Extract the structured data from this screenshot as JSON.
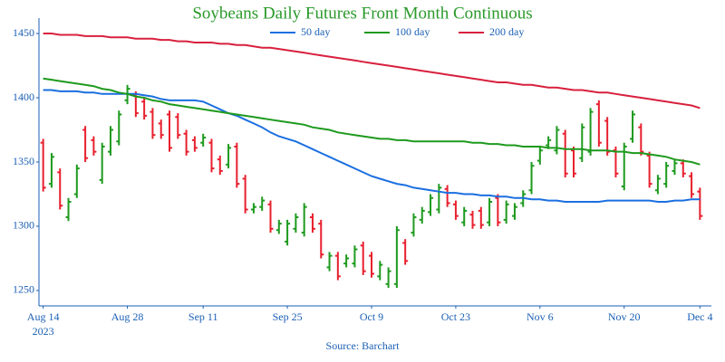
{
  "chart_data": {
    "type": "ohlc",
    "title": "Soybeans Daily Futures Front Month Continuous",
    "source": "Source: Barchart",
    "x_year": "2023",
    "categories": [
      "Aug 14",
      null,
      null,
      null,
      null,
      null,
      null,
      null,
      null,
      null,
      "Aug 28",
      null,
      null,
      null,
      null,
      null,
      null,
      null,
      null,
      "Sep 11",
      null,
      null,
      null,
      null,
      null,
      null,
      null,
      null,
      null,
      "Sep 25",
      null,
      null,
      null,
      null,
      null,
      null,
      null,
      null,
      null,
      "Oct 9",
      null,
      null,
      null,
      null,
      null,
      null,
      null,
      null,
      null,
      "Oct 23",
      null,
      null,
      null,
      null,
      null,
      null,
      null,
      null,
      null,
      "Nov 6",
      null,
      null,
      null,
      null,
      null,
      null,
      null,
      null,
      null,
      "Nov 20",
      null,
      null,
      null,
      null,
      null,
      null,
      null,
      null,
      "Dec 4"
    ],
    "up_color": "#1e9a1e",
    "down_color": "#e8202e",
    "open": [
      1365,
      1333,
      1342,
      1307,
      1325,
      1375,
      1367,
      1336,
      1358,
      1366,
      1398,
      1402,
      1397,
      1389,
      1380,
      1387,
      1385,
      1372,
      1367,
      1365,
      1365,
      1352,
      1348,
      1362,
      1337,
      1313,
      1315,
      1317,
      1297,
      1288,
      1298,
      1295,
      1307,
      1302,
      1268,
      1277,
      1271,
      1271,
      1285,
      1277,
      1261,
      1255,
      1255,
      1287,
      1295,
      1305,
      1311,
      1313,
      1329,
      1317,
      1303,
      1309,
      1312,
      1303,
      1322,
      1305,
      1308,
      1318,
      1328,
      1351,
      1363,
      1359,
      1372,
      1359,
      1353,
      1358,
      1395,
      1382,
      1359,
      1331,
      1368,
      1377,
      1355,
      1328,
      1333,
      1343,
      1349,
      1339,
      1327
    ],
    "high": [
      1368,
      1357,
      1345,
      1322,
      1348,
      1378,
      1370,
      1365,
      1378,
      1390,
      1410,
      1405,
      1400,
      1392,
      1383,
      1390,
      1388,
      1375,
      1370,
      1372,
      1368,
      1355,
      1364,
      1365,
      1340,
      1318,
      1323,
      1320,
      1305,
      1305,
      1310,
      1318,
      1310,
      1305,
      1280,
      1280,
      1278,
      1285,
      1288,
      1280,
      1273,
      1268,
      1300,
      1290,
      1310,
      1315,
      1325,
      1333,
      1332,
      1320,
      1315,
      1312,
      1315,
      1322,
      1325,
      1320,
      1318,
      1328,
      1350,
      1362,
      1370,
      1378,
      1375,
      1362,
      1380,
      1392,
      1398,
      1385,
      1362,
      1365,
      1390,
      1380,
      1358,
      1340,
      1350,
      1352,
      1352,
      1342,
      1330
    ],
    "low": [
      1327,
      1330,
      1313,
      1304,
      1322,
      1350,
      1355,
      1333,
      1355,
      1363,
      1395,
      1385,
      1383,
      1368,
      1368,
      1358,
      1368,
      1355,
      1358,
      1362,
      1342,
      1340,
      1345,
      1330,
      1310,
      1310,
      1312,
      1295,
      1294,
      1285,
      1295,
      1292,
      1295,
      1275,
      1265,
      1258,
      1268,
      1268,
      1262,
      1260,
      1258,
      1252,
      1252,
      1270,
      1292,
      1302,
      1308,
      1310,
      1315,
      1305,
      1300,
      1298,
      1298,
      1300,
      1300,
      1302,
      1305,
      1315,
      1325,
      1348,
      1360,
      1356,
      1338,
      1338,
      1350,
      1355,
      1362,
      1355,
      1338,
      1328,
      1365,
      1355,
      1330,
      1325,
      1330,
      1340,
      1338,
      1322,
      1305
    ],
    "close": [
      1330,
      1354,
      1316,
      1319,
      1345,
      1353,
      1358,
      1362,
      1375,
      1387,
      1407,
      1388,
      1386,
      1371,
      1371,
      1361,
      1371,
      1358,
      1361,
      1369,
      1345,
      1343,
      1361,
      1333,
      1313,
      1315,
      1320,
      1298,
      1302,
      1302,
      1307,
      1315,
      1298,
      1278,
      1277,
      1261,
      1275,
      1282,
      1265,
      1263,
      1270,
      1265,
      1297,
      1273,
      1307,
      1312,
      1322,
      1330,
      1318,
      1308,
      1312,
      1301,
      1301,
      1319,
      1303,
      1317,
      1315,
      1325,
      1347,
      1359,
      1367,
      1375,
      1341,
      1341,
      1377,
      1389,
      1365,
      1358,
      1341,
      1362,
      1387,
      1358,
      1333,
      1337,
      1347,
      1349,
      1341,
      1325,
      1308
    ],
    "series": [
      {
        "name": "50 day",
        "color": "#1a6fe0",
        "values": [
          1406,
          1406,
          1405,
          1405,
          1405,
          1404,
          1404,
          1403,
          1403,
          1403,
          1403,
          1403,
          1402,
          1401,
          1399,
          1398,
          1398,
          1398,
          1398,
          1397,
          1394,
          1391,
          1388,
          1386,
          1383,
          1380,
          1377,
          1373,
          1370,
          1368,
          1366,
          1363,
          1360,
          1357,
          1354,
          1351,
          1348,
          1345,
          1342,
          1339,
          1337,
          1335,
          1333,
          1332,
          1330,
          1329,
          1328,
          1327,
          1326,
          1326,
          1325,
          1325,
          1324,
          1324,
          1323,
          1323,
          1322,
          1322,
          1321,
          1321,
          1320,
          1320,
          1319,
          1319,
          1319,
          1319,
          1319,
          1320,
          1320,
          1320,
          1320,
          1320,
          1320,
          1319,
          1319,
          1320,
          1320,
          1321,
          1321
        ]
      },
      {
        "name": "100 day",
        "color": "#1e9a1e",
        "values": [
          1415,
          1414,
          1413,
          1412,
          1411,
          1410,
          1409,
          1407,
          1406,
          1404,
          1403,
          1401,
          1400,
          1398,
          1397,
          1395,
          1394,
          1393,
          1392,
          1391,
          1390,
          1389,
          1388,
          1387,
          1386,
          1385,
          1384,
          1383,
          1382,
          1381,
          1380,
          1379,
          1377,
          1376,
          1375,
          1373,
          1372,
          1371,
          1370,
          1369,
          1368,
          1368,
          1367,
          1367,
          1366,
          1366,
          1366,
          1366,
          1366,
          1366,
          1366,
          1365,
          1365,
          1364,
          1364,
          1363,
          1363,
          1362,
          1362,
          1362,
          1361,
          1361,
          1360,
          1360,
          1360,
          1359,
          1359,
          1359,
          1358,
          1358,
          1357,
          1357,
          1356,
          1355,
          1354,
          1352,
          1351,
          1350,
          1348
        ]
      },
      {
        "name": "200 day",
        "color": "#d8203e",
        "values": [
          1450,
          1450,
          1449,
          1449,
          1449,
          1448,
          1448,
          1448,
          1447,
          1447,
          1447,
          1446,
          1446,
          1446,
          1445,
          1445,
          1444,
          1444,
          1443,
          1443,
          1443,
          1442,
          1442,
          1441,
          1441,
          1440,
          1439,
          1439,
          1438,
          1437,
          1436,
          1435,
          1434,
          1433,
          1432,
          1431,
          1430,
          1429,
          1428,
          1427,
          1426,
          1425,
          1424,
          1423,
          1422,
          1421,
          1420,
          1419,
          1418,
          1417,
          1416,
          1415,
          1414,
          1413,
          1412,
          1412,
          1411,
          1410,
          1410,
          1409,
          1408,
          1408,
          1407,
          1406,
          1406,
          1405,
          1404,
          1404,
          1403,
          1402,
          1401,
          1400,
          1399,
          1398,
          1397,
          1396,
          1395,
          1394,
          1392
        ]
      }
    ],
    "ylim": [
      1238,
      1462
    ],
    "yticks": [
      1250,
      1300,
      1350,
      1400,
      1450
    ],
    "grid": false
  }
}
